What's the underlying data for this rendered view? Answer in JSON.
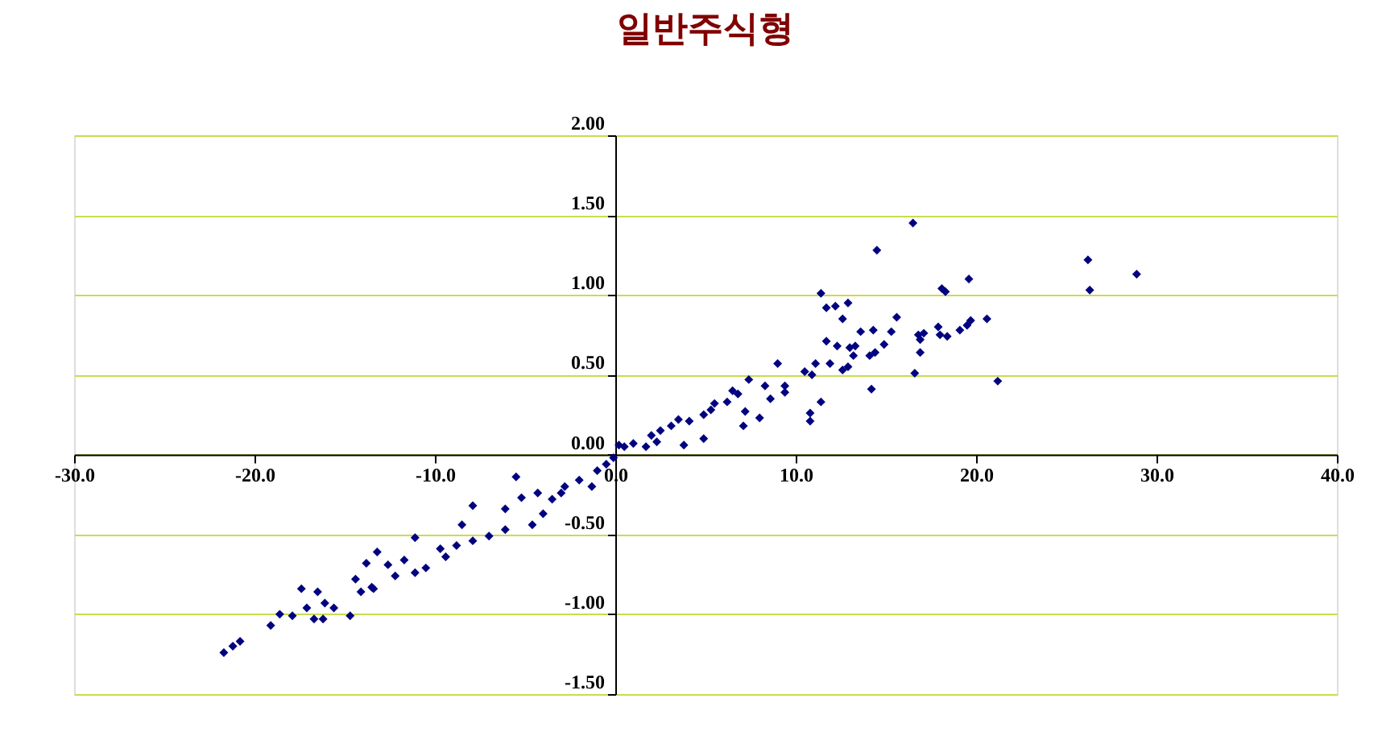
{
  "chart_data": {
    "type": "scatter",
    "title": "일반주식형",
    "x": [
      16.5,
      14.5,
      26.2,
      26.3,
      28.9,
      21.2,
      19.6,
      18.1,
      18.3,
      20.6,
      19.7,
      19.5,
      19.1,
      17.9,
      18.0,
      18.4,
      16.8,
      17.1,
      16.9,
      16.9,
      16.6,
      15.6,
      15.3,
      14.9,
      14.3,
      13.6,
      14.1,
      14.4,
      14.2,
      12.9,
      12.2,
      11.7,
      11.4,
      12.6,
      11.7,
      12.3,
      13.0,
      13.3,
      13.2,
      11.9,
      12.6,
      12.9,
      11.1,
      10.5,
      10.9,
      11.4,
      10.8,
      9.4,
      10.8,
      9.0,
      7.1,
      7.2,
      8.0,
      8.3,
      6.8,
      7.4,
      9.4,
      8.6,
      6.2,
      4.9,
      5.3,
      4.1,
      3.8,
      4.9,
      3.1,
      2.3,
      1.7,
      0.5,
      -0.1,
      0.2,
      1.0,
      2.0,
      2.5,
      3.5,
      5.5,
      6.5,
      -0.5,
      -1.0,
      -2.0,
      -3.0,
      -3.5,
      -1.3,
      -2.8,
      -4.0,
      -4.6,
      -5.2,
      -6.1,
      -6.1,
      -7.0,
      -7.9,
      -7.9,
      -8.8,
      -8.5,
      -9.4,
      -9.7,
      -11.1,
      -10.5,
      -11.7,
      -11.1,
      -12.2,
      -12.6,
      -13.2,
      -13.4,
      -5.5,
      -4.3,
      -13.8,
      -13.5,
      -14.1,
      -14.4,
      -14.7,
      -15.6,
      -16.1,
      -16.5,
      -17.4,
      -17.1,
      -16.7,
      -16.2,
      -17.9,
      -18.6,
      -19.1,
      -20.8,
      -21.2,
      -21.7
    ],
    "series": [
      {
        "color": "#000080",
        "values": [
          1.45,
          1.28,
          1.22,
          1.03,
          1.13,
          0.46,
          1.1,
          1.04,
          1.02,
          0.85,
          0.84,
          0.81,
          0.78,
          0.8,
          0.75,
          0.74,
          0.75,
          0.76,
          0.72,
          0.64,
          0.51,
          0.86,
          0.77,
          0.69,
          0.78,
          0.77,
          0.62,
          0.64,
          0.41,
          0.95,
          0.93,
          0.92,
          1.01,
          0.85,
          0.71,
          0.68,
          0.67,
          0.68,
          0.62,
          0.57,
          0.53,
          0.55,
          0.57,
          0.52,
          0.5,
          0.33,
          0.26,
          0.43,
          0.21,
          0.57,
          0.18,
          0.27,
          0.23,
          0.43,
          0.38,
          0.47,
          0.39,
          0.35,
          0.33,
          0.25,
          0.28,
          0.21,
          0.06,
          0.1,
          0.18,
          0.08,
          0.05,
          0.05,
          -0.02,
          0.06,
          0.07,
          0.12,
          0.15,
          0.22,
          0.32,
          0.4,
          -0.06,
          -0.1,
          -0.16,
          -0.24,
          -0.28,
          -0.2,
          -0.2,
          -0.37,
          -0.44,
          -0.27,
          -0.47,
          -0.34,
          -0.51,
          -0.32,
          -0.54,
          -0.57,
          -0.44,
          -0.64,
          -0.59,
          -0.52,
          -0.71,
          -0.66,
          -0.74,
          -0.76,
          -0.69,
          -0.61,
          -0.84,
          -0.14,
          -0.24,
          -0.68,
          -0.83,
          -0.86,
          -0.78,
          -1.01,
          -0.96,
          -0.93,
          -0.86,
          -0.84,
          -0.96,
          -1.03,
          -1.03,
          -1.01,
          -1.0,
          -1.07,
          -1.17,
          -1.2,
          -1.24
        ]
      }
    ],
    "xlim": [
      -30,
      40
    ],
    "ylim": [
      -1.5,
      2
    ],
    "xticks": [
      {
        "value": -30,
        "label": "-30.0"
      },
      {
        "value": -20,
        "label": "-20.0"
      },
      {
        "value": -10,
        "label": "-10.0"
      },
      {
        "value": 0,
        "label": "0.0"
      },
      {
        "value": 10,
        "label": "10.0"
      },
      {
        "value": 20,
        "label": "20.0"
      },
      {
        "value": 30,
        "label": "30.0"
      },
      {
        "value": 40,
        "label": "40.0"
      }
    ],
    "yticks": [
      {
        "value": -1.5,
        "label": "-1.50"
      },
      {
        "value": -1,
        "label": "-1.00"
      },
      {
        "value": -0.5,
        "label": "-0.50"
      },
      {
        "value": 0,
        "label": "0.00"
      },
      {
        "value": 0.5,
        "label": "0.50"
      },
      {
        "value": 1,
        "label": "1.00"
      },
      {
        "value": 1.5,
        "label": "1.50"
      },
      {
        "value": 2,
        "label": "2.00"
      }
    ],
    "grid": "y",
    "marker": "diamond"
  }
}
